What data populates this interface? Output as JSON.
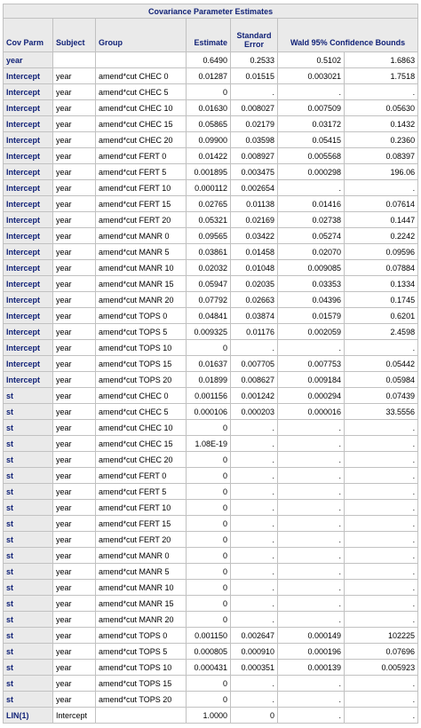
{
  "table": {
    "title": "Covariance Parameter Estimates",
    "headers": {
      "cov_parm": "Cov Parm",
      "subject": "Subject",
      "group": "Group",
      "estimate": "Estimate",
      "std_error": "Standard Error",
      "wald": "Wald 95% Confidence Bounds"
    },
    "rows": [
      [
        "year",
        "",
        "",
        "0.6490",
        "0.2533",
        "0.5102",
        "1.6863"
      ],
      [
        "Intercept",
        "year",
        "amend*cut CHEC 0",
        "0.01287",
        "0.01515",
        "0.003021",
        "1.7518"
      ],
      [
        "Intercept",
        "year",
        "amend*cut CHEC 5",
        "0",
        ".",
        ".",
        "."
      ],
      [
        "Intercept",
        "year",
        "amend*cut CHEC 10",
        "0.01630",
        "0.008027",
        "0.007509",
        "0.05630"
      ],
      [
        "Intercept",
        "year",
        "amend*cut CHEC 15",
        "0.05865",
        "0.02179",
        "0.03172",
        "0.1432"
      ],
      [
        "Intercept",
        "year",
        "amend*cut CHEC 20",
        "0.09900",
        "0.03598",
        "0.05415",
        "0.2360"
      ],
      [
        "Intercept",
        "year",
        "amend*cut FERT 0",
        "0.01422",
        "0.008927",
        "0.005568",
        "0.08397"
      ],
      [
        "Intercept",
        "year",
        "amend*cut FERT 5",
        "0.001895",
        "0.003475",
        "0.000298",
        "196.06"
      ],
      [
        "Intercept",
        "year",
        "amend*cut FERT 10",
        "0.000112",
        "0.002654",
        ".",
        "."
      ],
      [
        "Intercept",
        "year",
        "amend*cut FERT 15",
        "0.02765",
        "0.01138",
        "0.01416",
        "0.07614"
      ],
      [
        "Intercept",
        "year",
        "amend*cut FERT 20",
        "0.05321",
        "0.02169",
        "0.02738",
        "0.1447"
      ],
      [
        "Intercept",
        "year",
        "amend*cut MANR 0",
        "0.09565",
        "0.03422",
        "0.05274",
        "0.2242"
      ],
      [
        "Intercept",
        "year",
        "amend*cut MANR 5",
        "0.03861",
        "0.01458",
        "0.02070",
        "0.09596"
      ],
      [
        "Intercept",
        "year",
        "amend*cut MANR 10",
        "0.02032",
        "0.01048",
        "0.009085",
        "0.07884"
      ],
      [
        "Intercept",
        "year",
        "amend*cut MANR 15",
        "0.05947",
        "0.02035",
        "0.03353",
        "0.1334"
      ],
      [
        "Intercept",
        "year",
        "amend*cut MANR 20",
        "0.07792",
        "0.02663",
        "0.04396",
        "0.1745"
      ],
      [
        "Intercept",
        "year",
        "amend*cut TOPS 0",
        "0.04841",
        "0.03874",
        "0.01579",
        "0.6201"
      ],
      [
        "Intercept",
        "year",
        "amend*cut TOPS 5",
        "0.009325",
        "0.01176",
        "0.002059",
        "2.4598"
      ],
      [
        "Intercept",
        "year",
        "amend*cut TOPS 10",
        "0",
        ".",
        ".",
        "."
      ],
      [
        "Intercept",
        "year",
        "amend*cut TOPS 15",
        "0.01637",
        "0.007705",
        "0.007753",
        "0.05442"
      ],
      [
        "Intercept",
        "year",
        "amend*cut TOPS 20",
        "0.01899",
        "0.008627",
        "0.009184",
        "0.05984"
      ],
      [
        "st",
        "year",
        "amend*cut CHEC 0",
        "0.001156",
        "0.001242",
        "0.000294",
        "0.07439"
      ],
      [
        "st",
        "year",
        "amend*cut CHEC 5",
        "0.000106",
        "0.000203",
        "0.000016",
        "33.5556"
      ],
      [
        "st",
        "year",
        "amend*cut CHEC 10",
        "0",
        ".",
        ".",
        "."
      ],
      [
        "st",
        "year",
        "amend*cut CHEC 15",
        "1.08E-19",
        ".",
        ".",
        "."
      ],
      [
        "st",
        "year",
        "amend*cut CHEC 20",
        "0",
        ".",
        ".",
        "."
      ],
      [
        "st",
        "year",
        "amend*cut FERT 0",
        "0",
        ".",
        ".",
        "."
      ],
      [
        "st",
        "year",
        "amend*cut FERT 5",
        "0",
        ".",
        ".",
        "."
      ],
      [
        "st",
        "year",
        "amend*cut FERT 10",
        "0",
        ".",
        ".",
        "."
      ],
      [
        "st",
        "year",
        "amend*cut FERT 15",
        "0",
        ".",
        ".",
        "."
      ],
      [
        "st",
        "year",
        "amend*cut FERT 20",
        "0",
        ".",
        ".",
        "."
      ],
      [
        "st",
        "year",
        "amend*cut MANR 0",
        "0",
        ".",
        ".",
        "."
      ],
      [
        "st",
        "year",
        "amend*cut MANR 5",
        "0",
        ".",
        ".",
        "."
      ],
      [
        "st",
        "year",
        "amend*cut MANR 10",
        "0",
        ".",
        ".",
        "."
      ],
      [
        "st",
        "year",
        "amend*cut MANR 15",
        "0",
        ".",
        ".",
        "."
      ],
      [
        "st",
        "year",
        "amend*cut MANR 20",
        "0",
        ".",
        ".",
        "."
      ],
      [
        "st",
        "year",
        "amend*cut TOPS 0",
        "0.001150",
        "0.002647",
        "0.000149",
        "102225"
      ],
      [
        "st",
        "year",
        "amend*cut TOPS 5",
        "0.000805",
        "0.000910",
        "0.000196",
        "0.07696"
      ],
      [
        "st",
        "year",
        "amend*cut TOPS 10",
        "0.000431",
        "0.000351",
        "0.000139",
        "0.005923"
      ],
      [
        "st",
        "year",
        "amend*cut TOPS 15",
        "0",
        ".",
        ".",
        "."
      ],
      [
        "st",
        "year",
        "amend*cut TOPS 20",
        "0",
        ".",
        ".",
        "."
      ],
      [
        "LIN(1)",
        "Intercept",
        "",
        "1.0000",
        "0",
        ".",
        "."
      ]
    ]
  }
}
